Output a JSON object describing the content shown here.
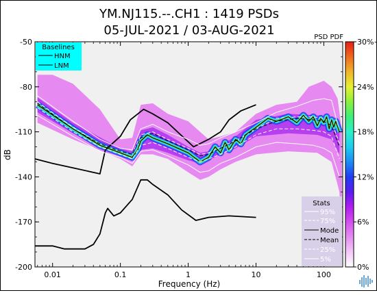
{
  "chart_data": {
    "type": "heatmap",
    "title": "YM.NJ115.--.CH1 : 1419 PSDs",
    "subtitle": "05-JUL-2021 / 03-AUG-2021",
    "xlabel": "Frequency (Hz)",
    "ylabel": "dB",
    "xscale": "log",
    "xlim": [
      0.0055,
      190
    ],
    "ylim": [
      -200,
      -50
    ],
    "x_ticks": [
      0.01,
      0.1,
      1,
      10,
      100
    ],
    "x_tick_labels": [
      "0.01",
      "0.1",
      "1",
      "10",
      "100"
    ],
    "y_ticks": [
      -50,
      -80,
      -110,
      -140,
      -170,
      -200
    ],
    "y_tick_labels": [
      "-50",
      "-80",
      "-110",
      "-140",
      "-170",
      "-200"
    ],
    "colorbar": {
      "label": "PSD PDF",
      "range": [
        0,
        30
      ],
      "ticks": [
        0,
        6,
        12,
        18,
        24,
        30
      ],
      "tick_labels": [
        "0%",
        "6%",
        "12%",
        "18%",
        "24%",
        "30%+"
      ],
      "colormap": [
        "#ffffff",
        "#f3c8f7",
        "#e58df0",
        "#d24ff0",
        "#b01cf0",
        "#5a1cf0",
        "#1f3df5",
        "#1c8cf5",
        "#1ccdf0",
        "#2cf0c8",
        "#3cf07a",
        "#8cf03c",
        "#e6f032",
        "#f0b428",
        "#f06a1e",
        "#e61e14"
      ]
    },
    "baselines_legend": {
      "title": "Baselines",
      "entries": [
        "HNM",
        "LNM"
      ],
      "background": "#00ffff"
    },
    "stats_legend": {
      "title": "Stats",
      "entries": [
        "95%",
        "75%",
        "Mode",
        "Mean",
        "25%",
        "5%"
      ],
      "background": "#d8d0e8"
    },
    "pdf_band": {
      "lower": [
        [
          0.006,
          -104
        ],
        [
          0.02,
          -115
        ],
        [
          0.1,
          -128
        ],
        [
          0.15,
          -133
        ],
        [
          0.2,
          -125
        ],
        [
          0.3,
          -125
        ],
        [
          0.5,
          -128
        ],
        [
          1,
          -137
        ],
        [
          1.5,
          -142
        ],
        [
          2,
          -140
        ],
        [
          3,
          -135
        ],
        [
          5,
          -130
        ],
        [
          10,
          -125
        ],
        [
          30,
          -123
        ],
        [
          80,
          -124
        ],
        [
          130,
          -130
        ],
        [
          170,
          -150
        ],
        [
          185,
          -190
        ]
      ],
      "upper": [
        [
          0.006,
          -72
        ],
        [
          0.01,
          -72
        ],
        [
          0.02,
          -78
        ],
        [
          0.05,
          -95
        ],
        [
          0.1,
          -115
        ],
        [
          0.15,
          -114
        ],
        [
          0.2,
          -92
        ],
        [
          0.3,
          -91
        ],
        [
          0.5,
          -98
        ],
        [
          1,
          -103
        ],
        [
          2,
          -115
        ],
        [
          3,
          -113
        ],
        [
          5,
          -110
        ],
        [
          10,
          -98
        ],
        [
          20,
          -92
        ],
        [
          40,
          -90
        ],
        [
          60,
          -80
        ],
        [
          100,
          -76
        ],
        [
          130,
          -80
        ],
        [
          160,
          -88
        ],
        [
          185,
          -110
        ]
      ],
      "core_lower": [
        [
          0.006,
          -97
        ],
        [
          0.02,
          -111
        ],
        [
          0.1,
          -126
        ],
        [
          0.15,
          -129
        ],
        [
          0.2,
          -122
        ],
        [
          0.3,
          -121
        ],
        [
          0.5,
          -124
        ],
        [
          1,
          -129
        ],
        [
          1.5,
          -131
        ],
        [
          2,
          -129
        ],
        [
          3,
          -125
        ],
        [
          5,
          -121
        ],
        [
          10,
          -113
        ],
        [
          30,
          -111
        ],
        [
          80,
          -112
        ],
        [
          130,
          -115
        ],
        [
          170,
          -125
        ]
      ],
      "core_upper": [
        [
          0.006,
          -87
        ],
        [
          0.02,
          -104
        ],
        [
          0.1,
          -121
        ],
        [
          0.15,
          -123
        ],
        [
          0.2,
          -109
        ],
        [
          0.3,
          -107
        ],
        [
          0.5,
          -112
        ],
        [
          1,
          -120
        ],
        [
          1.5,
          -124
        ],
        [
          2,
          -123
        ],
        [
          3,
          -119
        ],
        [
          5,
          -113
        ],
        [
          10,
          -102
        ],
        [
          30,
          -98
        ],
        [
          80,
          -99
        ],
        [
          130,
          -101
        ],
        [
          170,
          -108
        ]
      ]
    },
    "series": [
      {
        "name": "HNM",
        "color": "#000000",
        "dash": "",
        "width": 1.8,
        "points": [
          [
            0.0055,
            -128
          ],
          [
            0.01,
            -131
          ],
          [
            0.02,
            -134
          ],
          [
            0.05,
            -138
          ],
          [
            0.06,
            -122
          ],
          [
            0.1,
            -113
          ],
          [
            0.14,
            -102
          ],
          [
            0.22,
            -95
          ],
          [
            0.3,
            -98
          ],
          [
            0.5,
            -104
          ],
          [
            1.2,
            -120
          ],
          [
            2,
            -115
          ],
          [
            3,
            -110
          ],
          [
            4,
            -102
          ],
          [
            6,
            -96
          ],
          [
            10,
            -92
          ]
        ]
      },
      {
        "name": "LNM",
        "color": "#000000",
        "dash": "",
        "width": 1.8,
        "points": [
          [
            0.0055,
            -186
          ],
          [
            0.01,
            -186
          ],
          [
            0.015,
            -188
          ],
          [
            0.03,
            -188
          ],
          [
            0.04,
            -185
          ],
          [
            0.05,
            -178
          ],
          [
            0.06,
            -164
          ],
          [
            0.065,
            -161
          ],
          [
            0.08,
            -166
          ],
          [
            0.1,
            -164
          ],
          [
            0.15,
            -155
          ],
          [
            0.2,
            -142
          ],
          [
            0.25,
            -142
          ],
          [
            0.3,
            -145
          ],
          [
            0.5,
            -152
          ],
          [
            0.8,
            -162
          ],
          [
            1.3,
            -169
          ],
          [
            2,
            -167
          ],
          [
            4,
            -166
          ],
          [
            10,
            -167
          ]
        ]
      },
      {
        "name": "95%",
        "color": "#ffffff",
        "dash": "",
        "width": 1,
        "points": [
          [
            0.006,
            -86
          ],
          [
            0.02,
            -103
          ],
          [
            0.05,
            -115
          ],
          [
            0.1,
            -121
          ],
          [
            0.15,
            -122
          ],
          [
            0.2,
            -108
          ],
          [
            0.3,
            -105
          ],
          [
            0.5,
            -110
          ],
          [
            1,
            -115
          ],
          [
            1.5,
            -119
          ],
          [
            2,
            -118
          ],
          [
            3,
            -114
          ],
          [
            5,
            -110
          ],
          [
            10,
            -104
          ],
          [
            20,
            -97
          ],
          [
            40,
            -93
          ],
          [
            70,
            -89
          ],
          [
            100,
            -88
          ],
          [
            130,
            -89
          ],
          [
            170,
            -110
          ]
        ]
      },
      {
        "name": "75%",
        "color": "#ffffff",
        "dash": "5,3",
        "width": 1,
        "points": [
          [
            0.006,
            -90
          ],
          [
            0.02,
            -107
          ],
          [
            0.05,
            -118
          ],
          [
            0.1,
            -123
          ],
          [
            0.15,
            -125
          ],
          [
            0.2,
            -112
          ],
          [
            0.3,
            -110
          ],
          [
            0.5,
            -115
          ],
          [
            1,
            -121
          ],
          [
            1.5,
            -125
          ],
          [
            2,
            -124
          ],
          [
            3,
            -120
          ],
          [
            5,
            -116
          ],
          [
            10,
            -108
          ],
          [
            20,
            -101
          ],
          [
            40,
            -100
          ],
          [
            70,
            -100
          ],
          [
            100,
            -101
          ],
          [
            130,
            -103
          ],
          [
            170,
            -118
          ]
        ]
      },
      {
        "name": "Mode",
        "color": "#000000",
        "dash": "",
        "width": 1.2,
        "points": [
          [
            0.006,
            -92
          ],
          [
            0.02,
            -108
          ],
          [
            0.05,
            -119
          ],
          [
            0.1,
            -124
          ],
          [
            0.15,
            -127
          ],
          [
            0.18,
            -122
          ],
          [
            0.2,
            -116
          ],
          [
            0.25,
            -112
          ],
          [
            0.3,
            -114
          ],
          [
            0.5,
            -118
          ],
          [
            1,
            -124
          ],
          [
            1.5,
            -130
          ],
          [
            2,
            -127
          ],
          [
            2.5,
            -120
          ],
          [
            3,
            -124
          ],
          [
            3.5,
            -117
          ],
          [
            4,
            -122
          ],
          [
            5,
            -115
          ],
          [
            6,
            -118
          ],
          [
            7,
            -112
          ],
          [
            10,
            -107
          ],
          [
            15,
            -101
          ],
          [
            20,
            -103
          ],
          [
            30,
            -100
          ],
          [
            40,
            -104
          ],
          [
            50,
            -99
          ],
          [
            60,
            -103
          ],
          [
            70,
            -100
          ],
          [
            80,
            -106
          ],
          [
            90,
            -101
          ],
          [
            100,
            -104
          ],
          [
            110,
            -100
          ],
          [
            120,
            -108
          ],
          [
            130,
            -102
          ],
          [
            140,
            -107
          ],
          [
            150,
            -103
          ],
          [
            170,
            -110
          ]
        ]
      },
      {
        "name": "Mean",
        "color": "#000000",
        "dash": "5,3",
        "width": 1,
        "points": [
          [
            0.006,
            -91
          ],
          [
            0.02,
            -108
          ],
          [
            0.05,
            -118
          ],
          [
            0.1,
            -123
          ],
          [
            0.15,
            -125
          ],
          [
            0.2,
            -114
          ],
          [
            0.3,
            -111
          ],
          [
            0.5,
            -116
          ],
          [
            1,
            -122
          ],
          [
            1.5,
            -126
          ],
          [
            2,
            -125
          ],
          [
            3,
            -121
          ],
          [
            5,
            -116
          ],
          [
            10,
            -108
          ],
          [
            20,
            -103
          ],
          [
            40,
            -101
          ],
          [
            70,
            -102
          ],
          [
            100,
            -103
          ],
          [
            130,
            -106
          ],
          [
            170,
            -120
          ]
        ]
      },
      {
        "name": "25%",
        "color": "#ffffff",
        "dash": "5,3",
        "width": 1,
        "points": [
          [
            0.006,
            -94
          ],
          [
            0.02,
            -110
          ],
          [
            0.05,
            -120
          ],
          [
            0.1,
            -125
          ],
          [
            0.15,
            -128
          ],
          [
            0.2,
            -119
          ],
          [
            0.3,
            -117
          ],
          [
            0.5,
            -121
          ],
          [
            1,
            -127
          ],
          [
            1.5,
            -130
          ],
          [
            2,
            -128
          ],
          [
            3,
            -125
          ],
          [
            5,
            -120
          ],
          [
            10,
            -112
          ],
          [
            20,
            -108
          ],
          [
            40,
            -108
          ],
          [
            70,
            -109
          ],
          [
            100,
            -110
          ],
          [
            130,
            -113
          ],
          [
            170,
            -128
          ]
        ]
      },
      {
        "name": "5%",
        "color": "#ffffff",
        "dash": "",
        "width": 1,
        "points": [
          [
            0.006,
            -99
          ],
          [
            0.02,
            -113
          ],
          [
            0.05,
            -123
          ],
          [
            0.1,
            -127
          ],
          [
            0.15,
            -131
          ],
          [
            0.2,
            -123
          ],
          [
            0.3,
            -122
          ],
          [
            0.5,
            -126
          ],
          [
            1,
            -132
          ],
          [
            1.5,
            -137
          ],
          [
            2,
            -136
          ],
          [
            3,
            -131
          ],
          [
            5,
            -127
          ],
          [
            10,
            -120
          ],
          [
            20,
            -117
          ],
          [
            40,
            -118
          ],
          [
            70,
            -119
          ],
          [
            100,
            -121
          ],
          [
            130,
            -124
          ],
          [
            170,
            -140
          ]
        ]
      }
    ]
  }
}
